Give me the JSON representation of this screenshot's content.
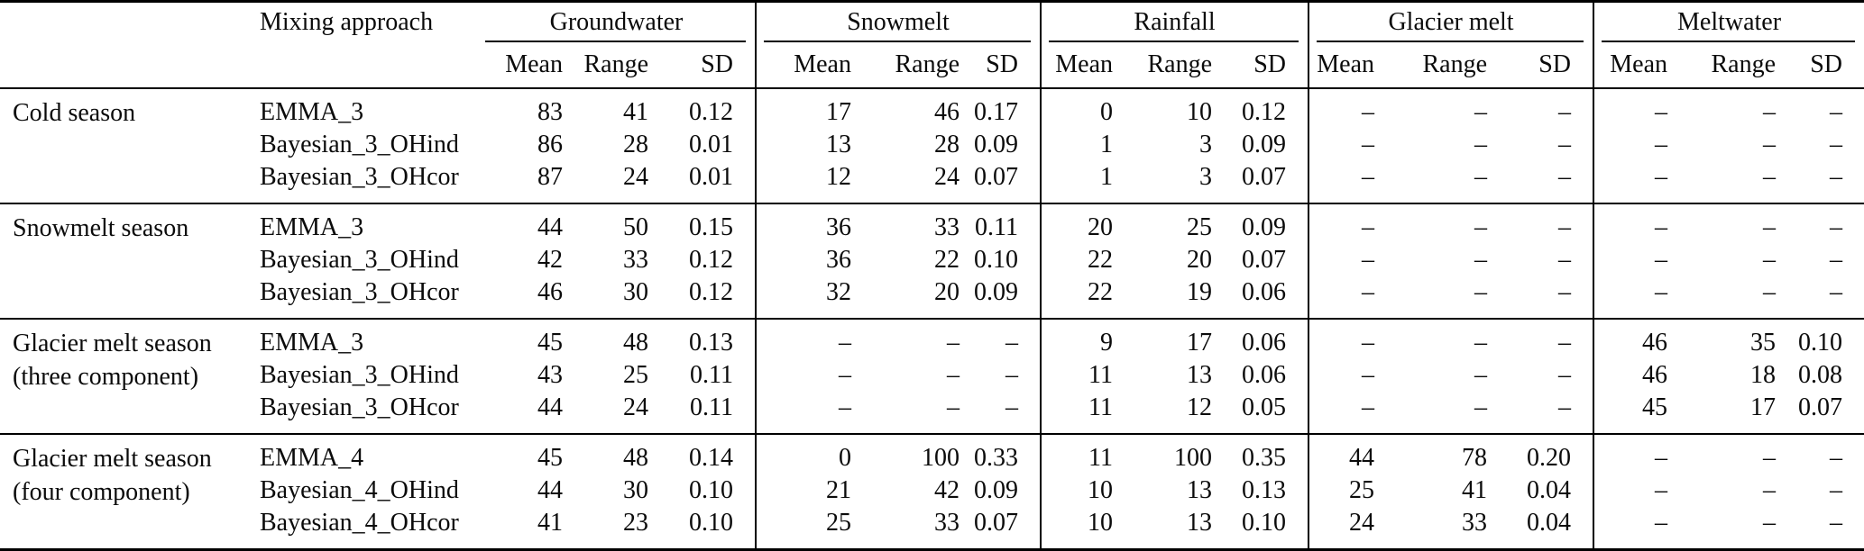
{
  "table": {
    "col_headers": {
      "mixing_approach": "Mixing approach",
      "sub": [
        "Mean",
        "Range",
        "SD"
      ]
    },
    "groups": [
      "Groundwater",
      "Snowmelt",
      "Rainfall",
      "Glacier melt",
      "Meltwater"
    ],
    "sections": [
      {
        "season": "Cold season",
        "season_line2": "",
        "rows": [
          {
            "approach": "EMMA_3",
            "values": [
              "83",
              "41",
              "0.12",
              "17",
              "46",
              "0.17",
              "0",
              "10",
              "0.12",
              "–",
              "–",
              "–",
              "–",
              "–",
              "–"
            ]
          },
          {
            "approach": "Bayesian_3_OHind",
            "values": [
              "86",
              "28",
              "0.01",
              "13",
              "28",
              "0.09",
              "1",
              "3",
              "0.09",
              "–",
              "–",
              "–",
              "–",
              "–",
              "–"
            ]
          },
          {
            "approach": "Bayesian_3_OHcor",
            "values": [
              "87",
              "24",
              "0.01",
              "12",
              "24",
              "0.07",
              "1",
              "3",
              "0.07",
              "–",
              "–",
              "–",
              "–",
              "–",
              "–"
            ]
          }
        ]
      },
      {
        "season": "Snowmelt season",
        "season_line2": "",
        "rows": [
          {
            "approach": "EMMA_3",
            "values": [
              "44",
              "50",
              "0.15",
              "36",
              "33",
              "0.11",
              "20",
              "25",
              "0.09",
              "–",
              "–",
              "–",
              "–",
              "–",
              "–"
            ]
          },
          {
            "approach": "Bayesian_3_OHind",
            "values": [
              "42",
              "33",
              "0.12",
              "36",
              "22",
              "0.10",
              "22",
              "20",
              "0.07",
              "–",
              "–",
              "–",
              "–",
              "–",
              "–"
            ]
          },
          {
            "approach": "Bayesian_3_OHcor",
            "values": [
              "46",
              "30",
              "0.12",
              "32",
              "20",
              "0.09",
              "22",
              "19",
              "0.06",
              "–",
              "–",
              "–",
              "–",
              "–",
              "–"
            ]
          }
        ]
      },
      {
        "season": "Glacier melt season",
        "season_line2": "(three component)",
        "rows": [
          {
            "approach": "EMMA_3",
            "values": [
              "45",
              "48",
              "0.13",
              "–",
              "–",
              "–",
              "9",
              "17",
              "0.06",
              "–",
              "–",
              "–",
              "46",
              "35",
              "0.10"
            ]
          },
          {
            "approach": "Bayesian_3_OHind",
            "values": [
              "43",
              "25",
              "0.11",
              "–",
              "–",
              "–",
              "11",
              "13",
              "0.06",
              "–",
              "–",
              "–",
              "46",
              "18",
              "0.08"
            ]
          },
          {
            "approach": "Bayesian_3_OHcor",
            "values": [
              "44",
              "24",
              "0.11",
              "–",
              "–",
              "–",
              "11",
              "12",
              "0.05",
              "–",
              "–",
              "–",
              "45",
              "17",
              "0.07"
            ]
          }
        ]
      },
      {
        "season": "Glacier melt season",
        "season_line2": "(four component)",
        "rows": [
          {
            "approach": "EMMA_4",
            "values": [
              "45",
              "48",
              "0.14",
              "0",
              "100",
              "0.33",
              "11",
              "100",
              "0.35",
              "44",
              "78",
              "0.20",
              "–",
              "–",
              "–"
            ]
          },
          {
            "approach": "Bayesian_4_OHind",
            "values": [
              "44",
              "30",
              "0.10",
              "21",
              "42",
              "0.09",
              "10",
              "13",
              "0.13",
              "25",
              "41",
              "0.04",
              "–",
              "–",
              "–"
            ]
          },
          {
            "approach": "Bayesian_4_OHcor",
            "values": [
              "41",
              "23",
              "0.10",
              "25",
              "33",
              "0.07",
              "10",
              "13",
              "0.10",
              "24",
              "33",
              "0.04",
              "–",
              "–",
              "–"
            ]
          }
        ]
      }
    ]
  }
}
